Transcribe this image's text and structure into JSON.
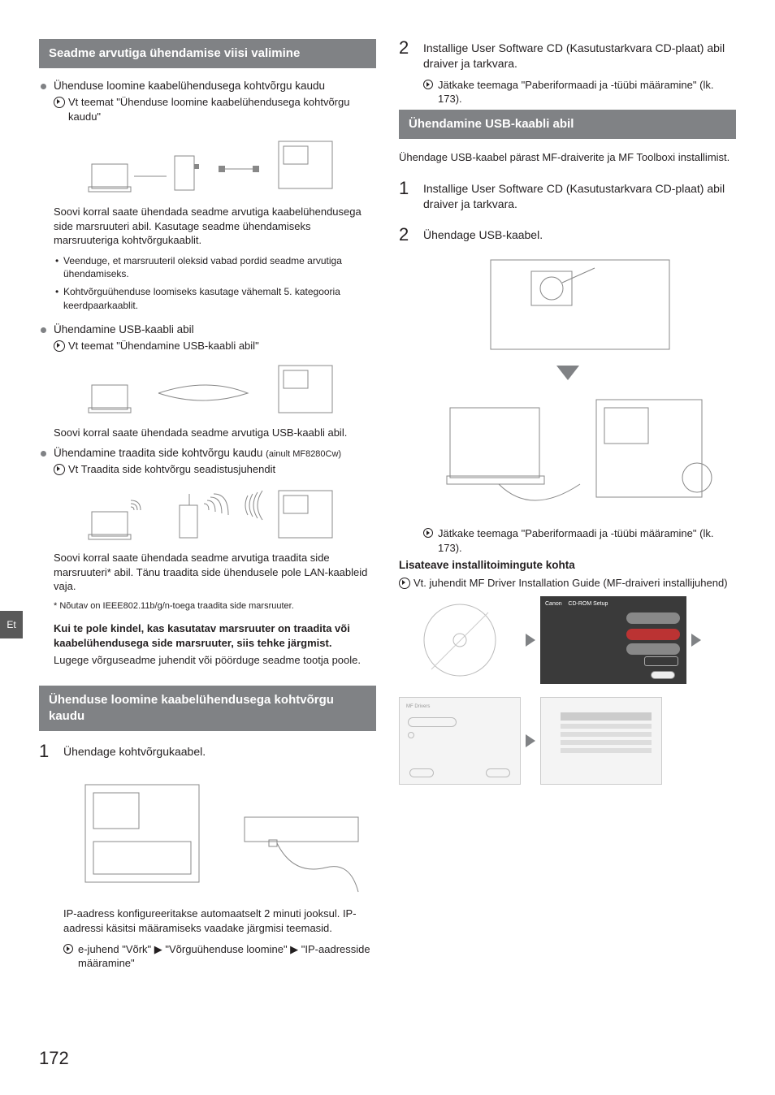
{
  "page_number": "172",
  "lang_tab": "Et",
  "left": {
    "header1": "Seadme arvutiga ühendamise viisi valimine",
    "opt1_title": "Ühenduse loomine kaabelühendusega kohtvõrgu kaudu",
    "opt1_ref": "Vt teemat \"Ühenduse loomine kaabelühendusega kohtvõrgu kaudu\"",
    "opt1_desc": "Soovi korral saate ühendada seadme arvutiga kaabelühendusega side marsruuteri abil. Kasutage seadme ühendamiseks marsruuteriga kohtvõrgukaablit.",
    "opt1_sub1": "Veenduge, et marsruuteril oleksid vabad pordid seadme arvutiga ühendamiseks.",
    "opt1_sub2": "Kohtvõrguühenduse loomiseks kasutage vähemalt 5. kategooria keerdpaarkaablit.",
    "opt2_title": "Ühendamine USB-kaabli abil",
    "opt2_ref": "Vt teemat \"Ühendamine USB-kaabli abil\"",
    "opt2_desc": "Soovi korral saate ühendada seadme arvutiga USB-kaabli abil.",
    "opt3_title_a": "Ühendamine traadita side kohtvõrgu kaudu ",
    "opt3_title_b": "(ainult MF8280Cw)",
    "opt3_ref": "Vt Traadita side kohtvõrgu seadistusjuhendit",
    "opt3_desc": "Soovi korral saate ühendada seadme arvutiga traadita side marsruuteri* abil. Tänu traadita side ühendusele pole LAN-kaableid vaja.",
    "opt3_foot": "* Nõutav on IEEE802.11b/g/n-toega traadita side marsruuter.",
    "unsure_bold": "Kui te pole kindel, kas kasutatav marsruuter on traadita või kaabelühendusega side marsruuter, siis tehke järgmist.",
    "unsure_desc": "Lugege võrguseadme juhendit või pöörduge seadme tootja poole.",
    "header2": "Ühenduse loomine kaabelühendusega kohtvõrgu kaudu",
    "step1": "Ühendage kohtvõrgukaabel.",
    "step1_desc": "IP-aadress konfigureeritakse automaatselt 2 minuti jooksul. IP-aadressi käsitsi määramiseks vaadake järgmisi teemasid.",
    "step1_ref": "e-juhend \"Võrk\" ▶ \"Võrguühenduse loomine\" ▶ \"IP-aadresside määramine\""
  },
  "right": {
    "step2": "Installige User Software CD (Kasutustarkvara CD-plaat) abil draiver ja tarkvara.",
    "step2_ref": "Jätkake teemaga \"Paberiformaadi ja -tüübi määramine\" (lk. 173).",
    "header3": "Ühendamine USB-kaabli abil",
    "usb_intro": "Ühendage USB-kaabel pärast MF-draiverite ja MF Toolboxi installimist.",
    "usb_step1": "Installige User Software CD (Kasutustarkvara CD-plaat) abil draiver ja tarkvara.",
    "usb_step2": "Ühendage USB-kaabel.",
    "usb_ref": "Jätkake teemaga \"Paberiformaadi ja -tüübi määramine\" (lk. 173).",
    "more_heading": "Lisateave installitoimingute kohta",
    "more_ref": "Vt. juhendit MF Driver Installation Guide (MF-draiveri installijuhend)"
  }
}
